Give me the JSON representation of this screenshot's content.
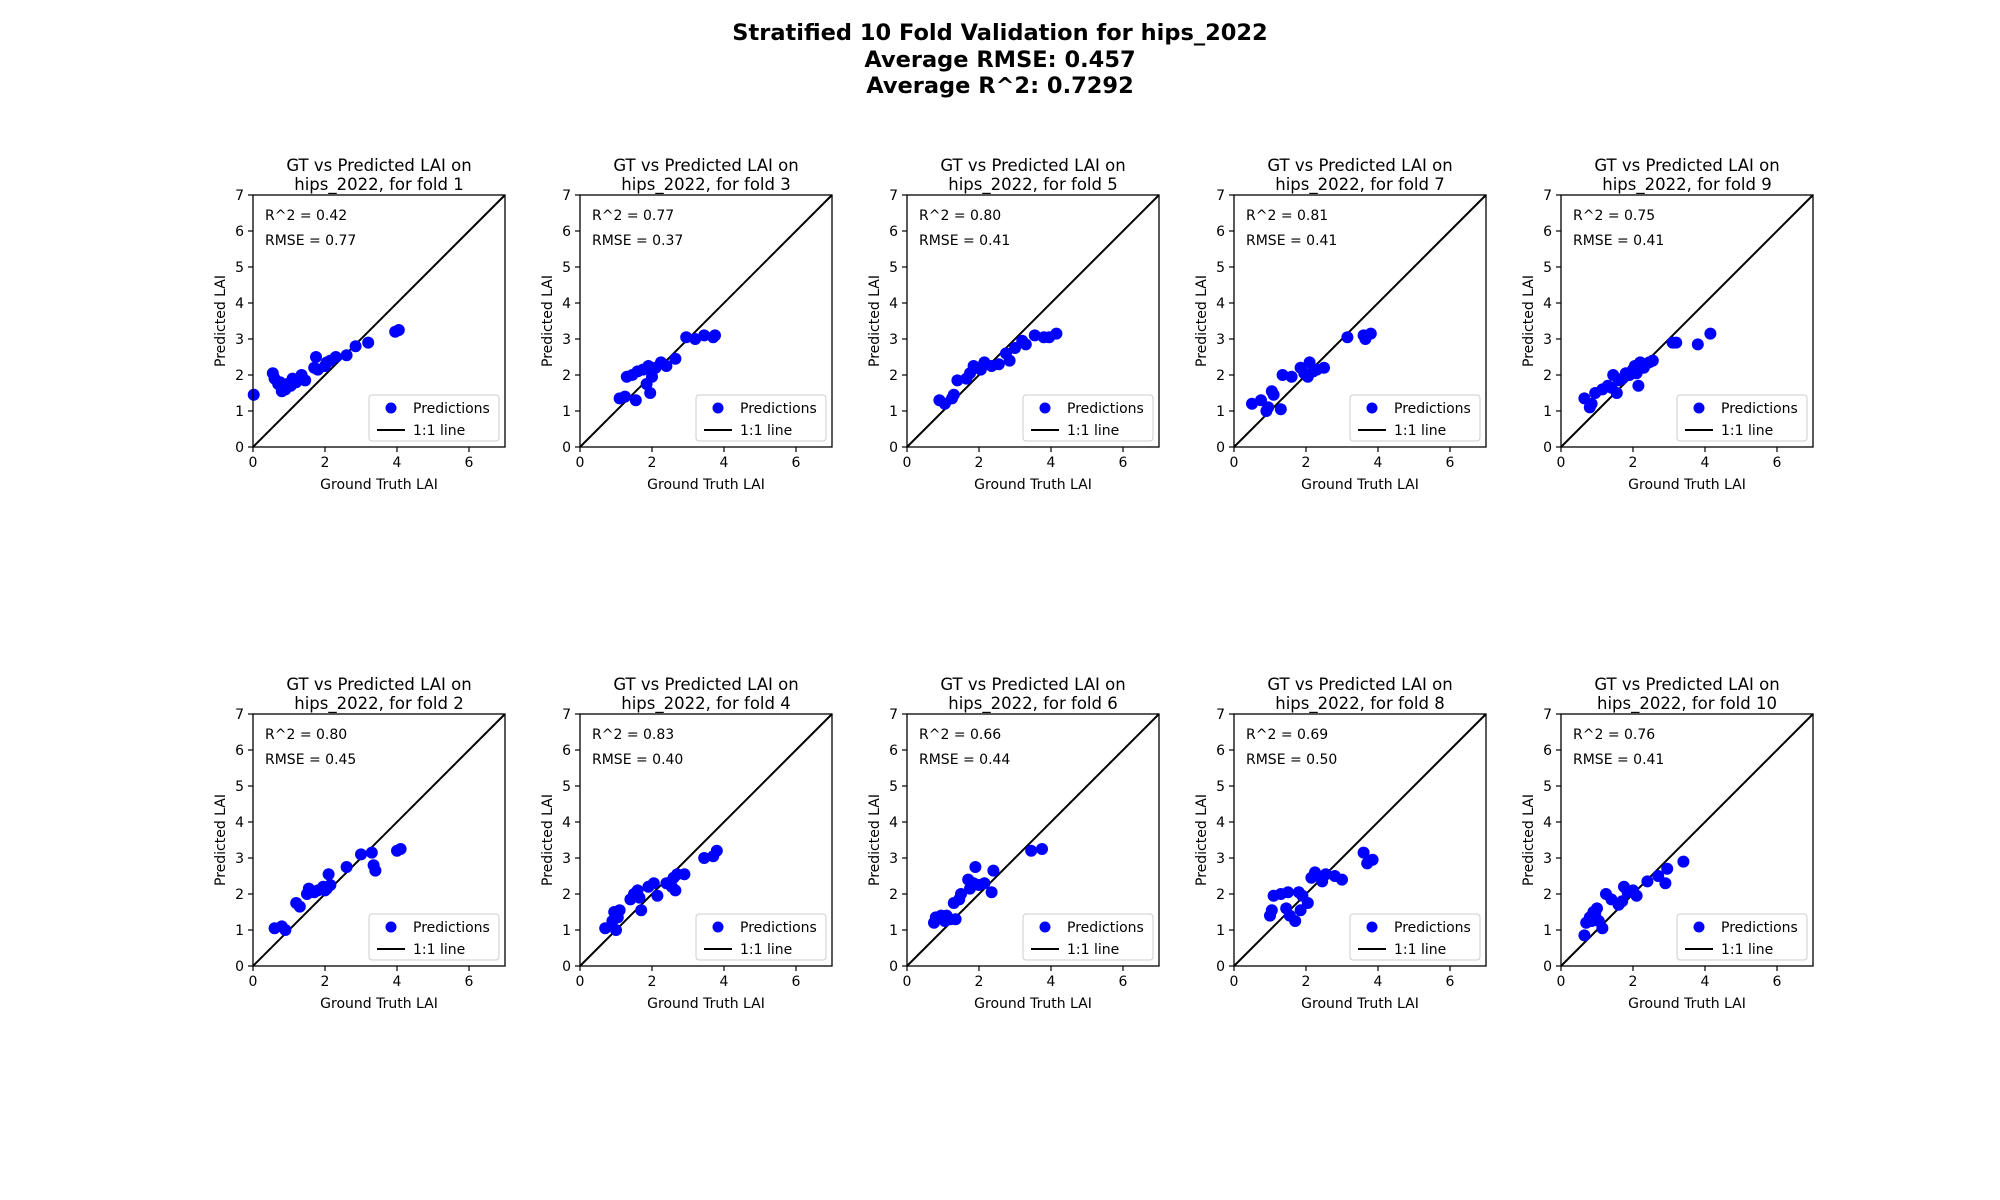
{
  "figure": {
    "title_lines": [
      "Stratified 10 Fold Validation for hips_2022",
      "Average RMSE: 0.457",
      "Average R^2: 0.7292"
    ]
  },
  "chart_data": [
    {
      "type": "scatter",
      "title_lines": [
        "GT vs Predicted LAI on",
        "hips_2022, for fold 1"
      ],
      "xlabel": "Ground Truth LAI",
      "ylabel": "Predicted LAI",
      "xlim": [
        0,
        7
      ],
      "ylim": [
        0,
        7
      ],
      "xticks": [
        0,
        2,
        4,
        6
      ],
      "yticks": [
        0,
        1,
        2,
        3,
        4,
        5,
        6,
        7
      ],
      "r2_label": "R^2 = 0.42",
      "rmse_label": "RMSE = 0.77",
      "legend": [
        "Predictions",
        "1:1 line"
      ],
      "legend_position": "lower-right",
      "marker_color": "#0000ff",
      "line_color": "#000000",
      "x": [
        0.02,
        0.55,
        0.6,
        0.7,
        0.75,
        0.8,
        0.9,
        0.95,
        1.05,
        1.1,
        1.2,
        1.35,
        1.45,
        1.7,
        1.75,
        1.8,
        2.0,
        2.05,
        2.15,
        2.3,
        2.6,
        2.85,
        3.2,
        3.95,
        4.05
      ],
      "y": [
        1.45,
        2.05,
        1.9,
        1.75,
        1.8,
        1.55,
        1.6,
        1.75,
        1.7,
        1.9,
        1.8,
        2.0,
        1.85,
        2.2,
        2.5,
        2.15,
        2.25,
        2.35,
        2.4,
        2.5,
        2.55,
        2.8,
        2.9,
        3.2,
        3.25
      ]
    },
    {
      "type": "scatter",
      "title_lines": [
        "GT vs Predicted LAI on",
        "hips_2022, for fold 3"
      ],
      "xlabel": "Ground Truth LAI",
      "ylabel": "Predicted LAI",
      "xlim": [
        0,
        7
      ],
      "ylim": [
        0,
        7
      ],
      "xticks": [
        0,
        2,
        4,
        6
      ],
      "yticks": [
        0,
        1,
        2,
        3,
        4,
        5,
        6,
        7
      ],
      "r2_label": "R^2 = 0.77",
      "rmse_label": "RMSE = 0.37",
      "legend": [
        "Predictions",
        "1:1 line"
      ],
      "legend_position": "lower-right",
      "marker_color": "#0000ff",
      "line_color": "#000000",
      "x": [
        1.1,
        1.25,
        1.3,
        1.45,
        1.55,
        1.6,
        1.75,
        1.85,
        1.9,
        1.95,
        2.0,
        2.1,
        2.25,
        2.4,
        2.65,
        2.95,
        3.2,
        3.45,
        3.7,
        3.75
      ],
      "y": [
        1.35,
        1.4,
        1.95,
        2.0,
        1.3,
        2.1,
        2.15,
        1.75,
        2.25,
        1.5,
        1.95,
        2.2,
        2.35,
        2.25,
        2.45,
        3.05,
        3.0,
        3.1,
        3.05,
        3.1
      ]
    },
    {
      "type": "scatter",
      "title_lines": [
        "GT vs Predicted LAI on",
        "hips_2022, for fold 5"
      ],
      "xlabel": "Ground Truth LAI",
      "ylabel": "Predicted LAI",
      "xlim": [
        0,
        7
      ],
      "ylim": [
        0,
        7
      ],
      "xticks": [
        0,
        2,
        4,
        6
      ],
      "yticks": [
        0,
        1,
        2,
        3,
        4,
        5,
        6,
        7
      ],
      "r2_label": "R^2 = 0.80",
      "rmse_label": "RMSE = 0.41",
      "legend": [
        "Predictions",
        "1:1 line"
      ],
      "legend_position": "lower-right",
      "marker_color": "#0000ff",
      "line_color": "#000000",
      "x": [
        0.9,
        1.05,
        1.25,
        1.3,
        1.4,
        1.65,
        1.75,
        1.85,
        1.95,
        2.05,
        2.15,
        2.35,
        2.55,
        2.75,
        2.85,
        3.0,
        3.2,
        3.3,
        3.55,
        3.8,
        3.95,
        4.15
      ],
      "y": [
        1.3,
        1.2,
        1.35,
        1.45,
        1.85,
        1.9,
        2.05,
        2.25,
        2.2,
        2.15,
        2.35,
        2.25,
        2.3,
        2.6,
        2.4,
        2.75,
        2.95,
        2.85,
        3.1,
        3.05,
        3.05,
        3.15
      ]
    },
    {
      "type": "scatter",
      "title_lines": [
        "GT vs Predicted LAI on",
        "hips_2022, for fold 7"
      ],
      "xlabel": "Ground Truth LAI",
      "ylabel": "Predicted LAI",
      "xlim": [
        0,
        7
      ],
      "ylim": [
        0,
        7
      ],
      "xticks": [
        0,
        2,
        4,
        6
      ],
      "yticks": [
        0,
        1,
        2,
        3,
        4,
        5,
        6,
        7
      ],
      "r2_label": "R^2 = 0.81",
      "rmse_label": "RMSE = 0.41",
      "legend": [
        "Predictions",
        "1:1 line"
      ],
      "legend_position": "lower-right",
      "marker_color": "#0000ff",
      "line_color": "#000000",
      "x": [
        0.5,
        0.75,
        0.9,
        0.95,
        1.05,
        1.1,
        1.3,
        1.35,
        1.6,
        1.85,
        1.95,
        2.05,
        2.1,
        2.2,
        2.3,
        2.5,
        3.15,
        3.6,
        3.65,
        3.8
      ],
      "y": [
        1.2,
        1.3,
        1.0,
        1.1,
        1.55,
        1.45,
        1.05,
        2.0,
        1.95,
        2.2,
        2.05,
        1.95,
        2.35,
        2.1,
        2.15,
        2.2,
        3.05,
        3.1,
        3.0,
        3.15
      ]
    },
    {
      "type": "scatter",
      "title_lines": [
        "GT vs Predicted LAI on",
        "hips_2022, for fold 9"
      ],
      "xlabel": "Ground Truth LAI",
      "ylabel": "Predicted LAI",
      "xlim": [
        0,
        7
      ],
      "ylim": [
        0,
        7
      ],
      "xticks": [
        0,
        2,
        4,
        6
      ],
      "yticks": [
        0,
        1,
        2,
        3,
        4,
        5,
        6,
        7
      ],
      "r2_label": "R^2 = 0.75",
      "rmse_label": "RMSE = 0.41",
      "legend": [
        "Predictions",
        "1:1 line"
      ],
      "legend_position": "lower-right",
      "marker_color": "#0000ff",
      "line_color": "#000000",
      "x": [
        0.65,
        0.8,
        0.85,
        0.95,
        1.15,
        1.3,
        1.4,
        1.45,
        1.55,
        1.6,
        1.7,
        1.8,
        1.9,
        2.0,
        2.05,
        2.1,
        2.15,
        2.2,
        2.3,
        2.45,
        2.55,
        3.1,
        3.2,
        3.8,
        4.15
      ],
      "y": [
        1.35,
        1.1,
        1.2,
        1.5,
        1.6,
        1.7,
        1.65,
        2.0,
        1.5,
        1.85,
        1.9,
        2.05,
        2.0,
        2.15,
        2.25,
        2.05,
        1.7,
        2.35,
        2.2,
        2.35,
        2.4,
        2.9,
        2.9,
        2.85,
        3.15
      ]
    },
    {
      "type": "scatter",
      "title_lines": [
        "GT vs Predicted LAI on",
        "hips_2022, for fold 2"
      ],
      "xlabel": "Ground Truth LAI",
      "ylabel": "Predicted LAI",
      "xlim": [
        0,
        7
      ],
      "ylim": [
        0,
        7
      ],
      "xticks": [
        0,
        2,
        4,
        6
      ],
      "yticks": [
        0,
        1,
        2,
        3,
        4,
        5,
        6,
        7
      ],
      "r2_label": "R^2 = 0.80",
      "rmse_label": "RMSE = 0.45",
      "legend": [
        "Predictions",
        "1:1 line"
      ],
      "legend_position": "lower-right",
      "marker_color": "#0000ff",
      "line_color": "#000000",
      "x": [
        0.6,
        0.8,
        0.9,
        1.2,
        1.3,
        1.5,
        1.55,
        1.7,
        1.8,
        1.95,
        2.0,
        2.05,
        2.1,
        2.15,
        2.6,
        3.0,
        3.3,
        3.35,
        3.4,
        4.0,
        4.1
      ],
      "y": [
        1.05,
        1.1,
        1.0,
        1.75,
        1.65,
        2.0,
        2.15,
        2.05,
        2.1,
        2.2,
        2.1,
        2.15,
        2.55,
        2.25,
        2.75,
        3.1,
        3.15,
        2.8,
        2.65,
        3.2,
        3.25
      ]
    },
    {
      "type": "scatter",
      "title_lines": [
        "GT vs Predicted LAI on",
        "hips_2022, for fold 4"
      ],
      "xlabel": "Ground Truth LAI",
      "ylabel": "Predicted LAI",
      "xlim": [
        0,
        7
      ],
      "ylim": [
        0,
        7
      ],
      "xticks": [
        0,
        2,
        4,
        6
      ],
      "yticks": [
        0,
        1,
        2,
        3,
        4,
        5,
        6,
        7
      ],
      "r2_label": "R^2 = 0.83",
      "rmse_label": "RMSE = 0.40",
      "legend": [
        "Predictions",
        "1:1 line"
      ],
      "legend_position": "lower-right",
      "marker_color": "#0000ff",
      "line_color": "#000000",
      "x": [
        0.7,
        0.9,
        0.95,
        1.0,
        1.05,
        1.1,
        1.4,
        1.5,
        1.6,
        1.65,
        1.7,
        1.9,
        2.05,
        2.15,
        2.4,
        2.55,
        2.6,
        2.65,
        2.7,
        2.9,
        3.45,
        3.7,
        3.8
      ],
      "y": [
        1.05,
        1.25,
        1.5,
        1.0,
        1.35,
        1.55,
        1.85,
        2.0,
        2.1,
        1.9,
        1.55,
        2.2,
        2.3,
        1.95,
        2.3,
        2.2,
        2.45,
        2.1,
        2.55,
        2.55,
        3.0,
        3.05,
        3.2
      ]
    },
    {
      "type": "scatter",
      "title_lines": [
        "GT vs Predicted LAI on",
        "hips_2022, for fold 6"
      ],
      "xlabel": "Ground Truth LAI",
      "ylabel": "Predicted LAI",
      "xlim": [
        0,
        7
      ],
      "ylim": [
        0,
        7
      ],
      "xticks": [
        0,
        2,
        4,
        6
      ],
      "yticks": [
        0,
        1,
        2,
        3,
        4,
        5,
        6,
        7
      ],
      "r2_label": "R^2 = 0.66",
      "rmse_label": "RMSE = 0.44",
      "legend": [
        "Predictions",
        "1:1 line"
      ],
      "legend_position": "lower-right",
      "marker_color": "#0000ff",
      "line_color": "#000000",
      "x": [
        0.75,
        0.8,
        0.95,
        1.05,
        1.1,
        1.2,
        1.3,
        1.35,
        1.45,
        1.5,
        1.7,
        1.75,
        1.85,
        1.9,
        2.0,
        2.15,
        2.35,
        2.4,
        3.45,
        3.75
      ],
      "y": [
        1.2,
        1.35,
        1.4,
        1.25,
        1.4,
        1.3,
        1.75,
        1.3,
        1.85,
        2.0,
        2.4,
        2.15,
        2.3,
        2.75,
        2.25,
        2.3,
        2.05,
        2.65,
        3.2,
        3.25
      ]
    },
    {
      "type": "scatter",
      "title_lines": [
        "GT vs Predicted LAI on",
        "hips_2022, for fold 8"
      ],
      "xlabel": "Ground Truth LAI",
      "ylabel": "Predicted LAI",
      "xlim": [
        0,
        7
      ],
      "ylim": [
        0,
        7
      ],
      "xticks": [
        0,
        2,
        4,
        6
      ],
      "yticks": [
        0,
        1,
        2,
        3,
        4,
        5,
        6,
        7
      ],
      "r2_label": "R^2 = 0.69",
      "rmse_label": "RMSE = 0.50",
      "legend": [
        "Predictions",
        "1:1 line"
      ],
      "legend_position": "lower-right",
      "marker_color": "#0000ff",
      "line_color": "#000000",
      "x": [
        1.0,
        1.05,
        1.1,
        1.3,
        1.45,
        1.5,
        1.55,
        1.7,
        1.8,
        1.85,
        1.9,
        2.05,
        2.15,
        2.25,
        2.45,
        2.55,
        2.8,
        3.0,
        3.6,
        3.7,
        3.85
      ],
      "y": [
        1.4,
        1.55,
        1.95,
        2.0,
        1.6,
        2.05,
        1.4,
        1.25,
        2.05,
        1.55,
        1.95,
        1.75,
        2.45,
        2.6,
        2.35,
        2.55,
        2.5,
        2.4,
        3.15,
        2.85,
        2.95
      ]
    },
    {
      "type": "scatter",
      "title_lines": [
        "GT vs Predicted LAI on",
        "hips_2022, for fold 10"
      ],
      "xlabel": "Ground Truth LAI",
      "ylabel": "Predicted LAI",
      "xlim": [
        0,
        7
      ],
      "ylim": [
        0,
        7
      ],
      "xticks": [
        0,
        2,
        4,
        6
      ],
      "yticks": [
        0,
        1,
        2,
        3,
        4,
        5,
        6,
        7
      ],
      "r2_label": "R^2 = 0.76",
      "rmse_label": "RMSE = 0.41",
      "legend": [
        "Predictions",
        "1:1 line"
      ],
      "legend_position": "lower-right",
      "marker_color": "#0000ff",
      "line_color": "#000000",
      "x": [
        0.65,
        0.7,
        0.8,
        0.85,
        0.9,
        0.95,
        1.0,
        1.05,
        1.15,
        1.25,
        1.4,
        1.6,
        1.7,
        1.75,
        1.85,
        2.0,
        2.1,
        2.4,
        2.7,
        2.9,
        2.95,
        3.4
      ],
      "y": [
        0.85,
        1.2,
        1.35,
        1.25,
        1.5,
        1.45,
        1.6,
        1.25,
        1.05,
        2.0,
        1.85,
        1.7,
        1.8,
        2.2,
        2.05,
        2.1,
        1.95,
        2.35,
        2.5,
        2.3,
        2.7,
        2.9
      ]
    }
  ]
}
